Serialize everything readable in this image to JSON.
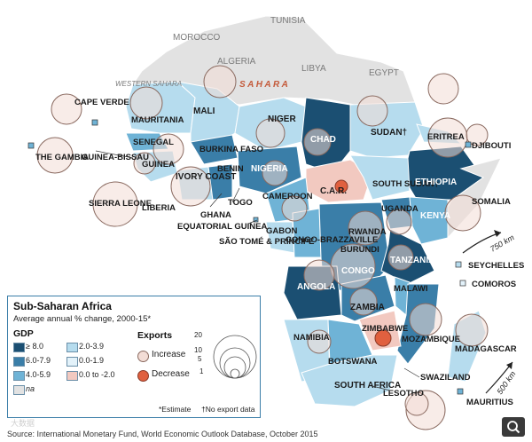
{
  "legend": {
    "title": "Sub-Saharan Africa",
    "subtitle": "Average annual % change, 2000-15*",
    "gdp_heading": "GDP",
    "gdp_classes": [
      {
        "label": "≥ 8.0",
        "color": "#1b4f72"
      },
      {
        "label": "6.0-7.9",
        "color": "#3a7ea8"
      },
      {
        "label": "4.0-5.9",
        "color": "#6fb3d6"
      },
      {
        "label": "2.0-3.9",
        "color": "#b6dcee"
      },
      {
        "label": "0.0-1.9",
        "color": "#e3f2fa"
      },
      {
        "label": "0.0 to -2.0",
        "color": "#f2c9c0"
      },
      {
        "label": "na",
        "color": "#e2e2e2"
      }
    ],
    "exports_heading": "Exports",
    "exports_scale": [
      "20",
      "10",
      "5",
      "1"
    ],
    "increase_label": "Increase",
    "decrease_label": "Decrease",
    "increase_color": "#f3ddd6",
    "decrease_color": "#e0603f",
    "estimate_note": "*Estimate",
    "no_data_note": "†No export data"
  },
  "source": "Source: International Monetary Fund, World Economic Outlook Database, October 2015",
  "watermark": "大数据",
  "scale": {
    "a": "750 km",
    "b": "500 km"
  },
  "countries": {
    "tunisia": "TUNISIA",
    "morocco": "MOROCCO",
    "algeria": "ALGERIA",
    "libya": "LIBYA",
    "egypt": "EGYPT",
    "western_sahara": "WESTERN SAHARA",
    "sahara": "S A H A R A",
    "cape_verde": "CAPE VERDE",
    "mauritania": "MAURITANIA",
    "mali": "MALI",
    "niger": "NIGER",
    "chad": "CHAD",
    "sudan": "SUDAN†",
    "eritrea": "ERITREA",
    "djibouti": "DJIBOUTI",
    "senegal": "SENEGAL",
    "the_gambia": "THE GAMBIA",
    "guinea_bissau": "GUINEA-BISSAU",
    "guinea": "GUINEA",
    "burkina_faso": "BURKINA FASO",
    "benin": "BENIN",
    "nigeria": "NIGERIA",
    "ivory_coast": "IVORY COAST",
    "sierra_leone": "SIERRA LEONE",
    "liberia": "LIBERIA",
    "ghana": "GHANA",
    "togo": "TOGO",
    "cameroon": "CAMEROON",
    "car": "C.A.R.",
    "south_sudan": "SOUTH SUDAN†",
    "ethiopia": "ETHIOPIA",
    "somalia": "SOMALIA",
    "uganda": "UGANDA",
    "kenya": "KENYA",
    "equatorial_guinea": "EQUATORIAL GUINEA",
    "gabon": "GABON",
    "congo_brazzaville": "CONGO-BRAZZAVILLE",
    "rwanda": "RWANDA",
    "burundi": "BURUNDI",
    "sao_tome": "SÃO TOMÉ & PRÍNCIPE",
    "congo": "CONGO",
    "tanzania": "TANZANIA",
    "seychelles": "SEYCHELLES",
    "comoros": "COMOROS",
    "angola": "ANGOLA",
    "malawi": "MALAWI",
    "zambia": "ZAMBIA",
    "zimbabwe": "ZIMBABWE",
    "mozambique": "MOZAMBIQUE",
    "madagascar": "MADAGASCAR",
    "namibia": "NAMIBIA",
    "botswana": "BOTSWANA",
    "swaziland": "SWAZILAND",
    "south_africa": "SOUTH AFRICA",
    "lesotho": "LESOTHO",
    "mauritius": "MAURITIUS"
  }
}
